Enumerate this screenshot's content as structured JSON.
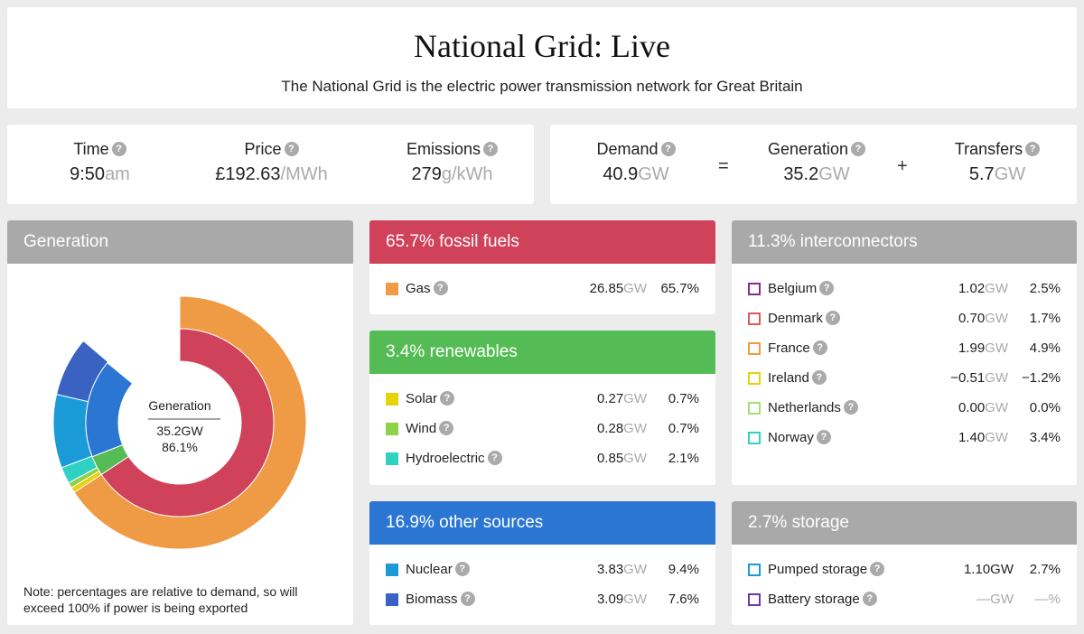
{
  "header": {
    "title": "National Grid: Live",
    "subtitle": "The National Grid is the electric power transmission network for Great Britain"
  },
  "stats": {
    "time": {
      "label": "Time",
      "value": "9:50",
      "unit": "am"
    },
    "price": {
      "label": "Price",
      "value": "£192.63",
      "unit": "/MWh"
    },
    "emissions": {
      "label": "Emissions",
      "value": "279",
      "unit": "g/kWh"
    },
    "demand": {
      "label": "Demand",
      "value": "40.9",
      "unit": "GW"
    },
    "generation": {
      "label": "Generation",
      "value": "35.2",
      "unit": "GW"
    },
    "transfers": {
      "label": "Transfers",
      "value": "5.7",
      "unit": "GW"
    },
    "equals": "=",
    "plus": "+"
  },
  "generation_panel": {
    "title": "Generation",
    "center_label": "Generation",
    "center_value": "35.2GW",
    "center_pct": "86.1%",
    "note": "Note: percentages are relative to demand, so will exceed 100% if power is being exported"
  },
  "fossil": {
    "title": "65.7% fossil fuels",
    "color": "#d0415a",
    "items": [
      {
        "name": "Gas",
        "gw": "26.85",
        "unit": "GW",
        "pct": "65.7%",
        "color": "#ef9a45"
      }
    ]
  },
  "renewables": {
    "title": "3.4% renewables",
    "color": "#55bc55",
    "items": [
      {
        "name": "Solar",
        "gw": "0.27",
        "unit": "GW",
        "pct": "0.7%",
        "color": "#e8d20c"
      },
      {
        "name": "Wind",
        "gw": "0.28",
        "unit": "GW",
        "pct": "0.7%",
        "color": "#8ed24a"
      },
      {
        "name": "Hydroelectric",
        "gw": "0.85",
        "unit": "GW",
        "pct": "2.1%",
        "color": "#2ed1c2"
      }
    ]
  },
  "other": {
    "title": "16.9% other sources",
    "color": "#2a76d2",
    "items": [
      {
        "name": "Nuclear",
        "gw": "3.83",
        "unit": "GW",
        "pct": "9.4%",
        "color": "#1a9bd8"
      },
      {
        "name": "Biomass",
        "gw": "3.09",
        "unit": "GW",
        "pct": "7.6%",
        "color": "#3a62c2"
      }
    ]
  },
  "interconnectors": {
    "title": "11.3% interconnectors",
    "color": "#a9a9a9",
    "items": [
      {
        "name": "Belgium",
        "gw": "1.02",
        "unit": "GW",
        "pct": "2.5%",
        "color": "#8a2a8a"
      },
      {
        "name": "Denmark",
        "gw": "0.70",
        "unit": "GW",
        "pct": "1.7%",
        "color": "#d95c5c"
      },
      {
        "name": "France",
        "gw": "1.99",
        "unit": "GW",
        "pct": "4.9%",
        "color": "#ef9a45"
      },
      {
        "name": "Ireland",
        "gw": "−0.51",
        "unit": "GW",
        "pct": "−1.2%",
        "color": "#e8d20c"
      },
      {
        "name": "Netherlands",
        "gw": "0.00",
        "unit": "GW",
        "pct": "0.0%",
        "color": "#a8dc7a"
      },
      {
        "name": "Norway",
        "gw": "1.40",
        "unit": "GW",
        "pct": "3.4%",
        "color": "#2ed1c2"
      }
    ]
  },
  "storage": {
    "title": "2.7% storage",
    "color": "#a9a9a9",
    "items": [
      {
        "name": "Pumped storage",
        "gw": "1.10",
        "unit": "GW",
        "pct": "2.7%",
        "color": "#1a9bd8"
      },
      {
        "name": "Battery storage",
        "gw": "—",
        "unit": "GW",
        "pct": "—%",
        "color": "#6a3aa8"
      }
    ]
  },
  "chart_data": {
    "type": "pie",
    "title": "Generation",
    "outer_ring": [
      {
        "name": "Fossil fuels",
        "value": 65.7,
        "color": "#ef9a45"
      },
      {
        "name": "Solar",
        "value": 0.7,
        "color": "#e8d20c"
      },
      {
        "name": "Wind",
        "value": 0.7,
        "color": "#8ed24a"
      },
      {
        "name": "Hydroelectric",
        "value": 2.1,
        "color": "#2ed1c2"
      },
      {
        "name": "Nuclear",
        "value": 9.4,
        "color": "#1a9bd8"
      },
      {
        "name": "Biomass",
        "value": 7.6,
        "color": "#3a62c2"
      }
    ],
    "inner_ring": [
      {
        "name": "Fossil fuels",
        "value": 65.7,
        "color": "#d0415a"
      },
      {
        "name": "Renewables",
        "value": 3.4,
        "color": "#55bc55"
      },
      {
        "name": "Other sources",
        "value": 16.9,
        "color": "#2a76d2"
      }
    ],
    "total_pct": 86.1
  }
}
